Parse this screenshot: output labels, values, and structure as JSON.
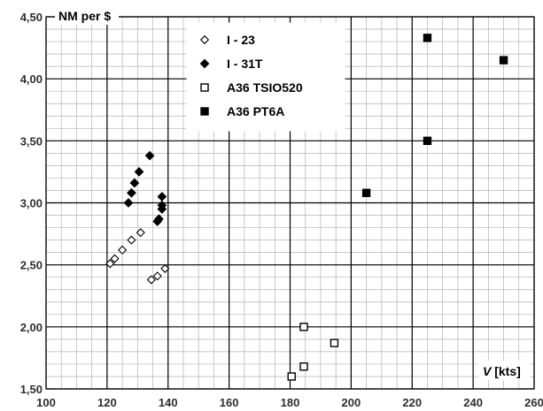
{
  "chart_data": {
    "type": "scatter",
    "xlabel": "V [kts]",
    "ylabel": "NM per $",
    "xlim": [
      100,
      260
    ],
    "ylim": [
      1.5,
      4.5
    ],
    "x_ticks": [
      "100",
      "120",
      "140",
      "160",
      "180",
      "200",
      "220",
      "240",
      "260"
    ],
    "y_ticks": [
      "1,50",
      "2,00",
      "2,50",
      "3,00",
      "3,50",
      "4,00",
      "4,50"
    ],
    "grid": true,
    "minor_grid": true,
    "legend_position": "top-center",
    "series": [
      {
        "name": "I - 23",
        "marker": "diamond-open",
        "color": "#000000",
        "points": [
          [
            121,
            2.51
          ],
          [
            122.5,
            2.55
          ],
          [
            125,
            2.62
          ],
          [
            128,
            2.7
          ],
          [
            131,
            2.76
          ],
          [
            134.5,
            2.38
          ],
          [
            136.5,
            2.41
          ],
          [
            139,
            2.47
          ]
        ]
      },
      {
        "name": "I - 31T",
        "marker": "diamond-filled",
        "color": "#000000",
        "points": [
          [
            127,
            3.0
          ],
          [
            128,
            3.08
          ],
          [
            129,
            3.16
          ],
          [
            130.5,
            3.25
          ],
          [
            134,
            3.38
          ],
          [
            136.5,
            2.85
          ],
          [
            137,
            2.87
          ],
          [
            138,
            2.95
          ],
          [
            138,
            2.98
          ],
          [
            138,
            3.05
          ]
        ]
      },
      {
        "name": "A36 TSIO520",
        "marker": "square-open",
        "color": "#000000",
        "points": [
          [
            180.5,
            1.6
          ],
          [
            184.5,
            1.68
          ],
          [
            184.5,
            2.0
          ],
          [
            194.5,
            1.87
          ]
        ]
      },
      {
        "name": "A36 PT6A",
        "marker": "square-filled",
        "color": "#000000",
        "points": [
          [
            205,
            3.08
          ],
          [
            225,
            3.5
          ],
          [
            225,
            4.33
          ],
          [
            250,
            4.15
          ]
        ]
      }
    ]
  }
}
